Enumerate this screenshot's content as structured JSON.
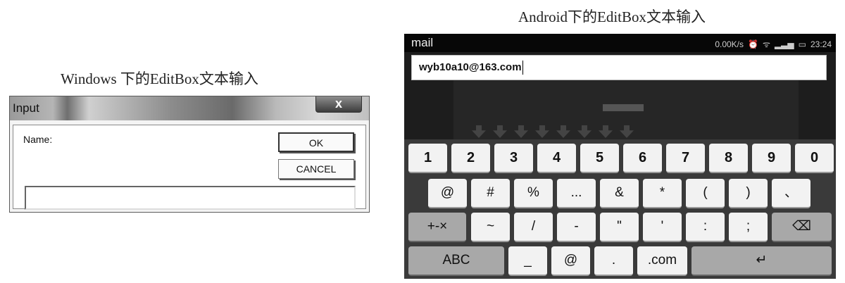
{
  "captions": {
    "windows": "Windows 下的EditBox文本输入",
    "android": "Android下的EditBox文本输入"
  },
  "win_dialog": {
    "title": "Input",
    "close_glyph": "x",
    "name_label": "Name:",
    "ok_label": "OK",
    "cancel_label": "CANCEL",
    "input_value": ""
  },
  "android": {
    "app_name": "mail",
    "status": {
      "speed": "0.00K/s",
      "alarm_icon": "alarm-icon",
      "wifi_icon": "wifi-icon",
      "signal_icon": "signal-icon",
      "battery_icon": "battery-icon",
      "time": "23:24"
    },
    "input_value": "wyb10a10@163.com",
    "keyboard": {
      "row1": [
        "1",
        "2",
        "3",
        "4",
        "5",
        "6",
        "7",
        "8",
        "9",
        "0"
      ],
      "row2": [
        "@",
        "#",
        "%",
        "...",
        "&",
        "*",
        "(",
        ")",
        "、"
      ],
      "row3": [
        "+-×",
        "~",
        "/",
        "-",
        "\"",
        "'",
        ":",
        ";",
        "⌫"
      ],
      "row4": [
        "ABC",
        "_",
        "@",
        ".",
        ".com",
        "↵"
      ]
    }
  }
}
